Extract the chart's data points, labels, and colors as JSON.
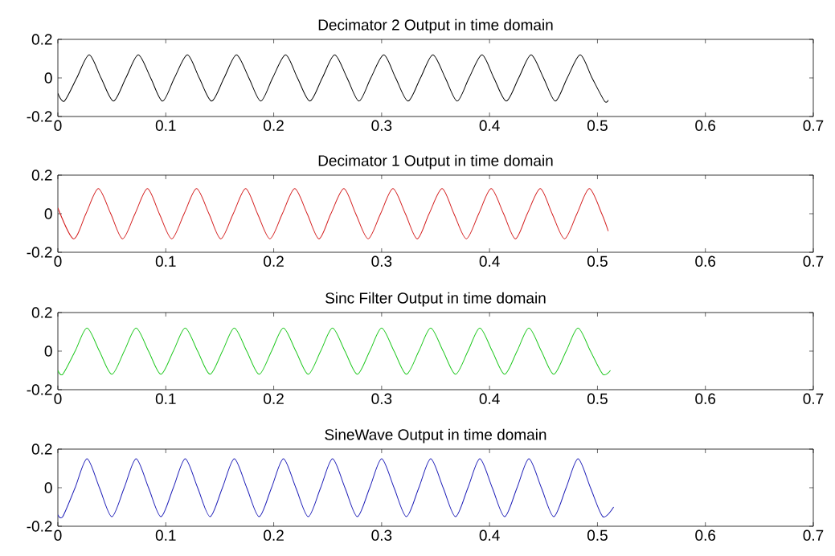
{
  "chart_data": [
    {
      "type": "line",
      "title": "Decimator 2 Output in time domain",
      "color": "#000000",
      "xlim": [
        0,
        0.7
      ],
      "xticks": [
        0,
        0.1,
        0.2,
        0.3,
        0.4,
        0.5,
        0.6,
        0.7
      ],
      "ylim": [
        -0.2,
        0.2
      ],
      "yticks": [
        -0.2,
        0,
        0.2
      ],
      "x": [
        0,
        0.006,
        0.0175,
        0.029,
        0.04,
        0.0515,
        0.063,
        0.0745,
        0.086,
        0.097,
        0.108,
        0.12,
        0.131,
        0.1425,
        0.154,
        0.1655,
        0.177,
        0.188,
        0.199,
        0.211,
        0.222,
        0.2335,
        0.245,
        0.2565,
        0.268,
        0.279,
        0.29,
        0.302,
        0.313,
        0.3245,
        0.336,
        0.3475,
        0.359,
        0.37,
        0.381,
        0.393,
        0.404,
        0.4155,
        0.427,
        0.4385,
        0.45,
        0.461,
        0.472,
        0.484,
        0.495,
        0.5065,
        0.51
      ],
      "values": [
        -0.08,
        -0.12,
        0,
        0.12,
        0,
        -0.12,
        0,
        0.12,
        0,
        -0.12,
        0,
        0.12,
        0,
        -0.12,
        0,
        0.12,
        0,
        -0.12,
        0,
        0.12,
        0,
        -0.12,
        0,
        0.12,
        0,
        -0.12,
        0,
        0.12,
        0,
        -0.12,
        0,
        0.12,
        0,
        -0.12,
        0,
        0.12,
        0,
        -0.12,
        0,
        0.12,
        0,
        -0.12,
        0,
        0.12,
        0,
        -0.12,
        -0.115
      ]
    },
    {
      "type": "line",
      "title": "Decimator 1 Output in time domain",
      "color": "#d42020",
      "xlim": [
        0,
        0.7
      ],
      "xticks": [
        0,
        0.1,
        0.2,
        0.3,
        0.4,
        0.5,
        0.6,
        0.7
      ],
      "ylim": [
        -0.2,
        0.2
      ],
      "yticks": [
        -0.2,
        0,
        0.2
      ],
      "x": [
        0,
        0.0145,
        0.026,
        0.0375,
        0.049,
        0.06,
        0.0715,
        0.083,
        0.094,
        0.1055,
        0.117,
        0.1285,
        0.14,
        0.151,
        0.1625,
        0.174,
        0.185,
        0.1965,
        0.208,
        0.2195,
        0.231,
        0.242,
        0.253,
        0.265,
        0.276,
        0.2875,
        0.299,
        0.3105,
        0.322,
        0.333,
        0.344,
        0.356,
        0.367,
        0.3785,
        0.39,
        0.4015,
        0.413,
        0.424,
        0.435,
        0.447,
        0.458,
        0.4695,
        0.481,
        0.4925,
        0.504,
        0.51
      ],
      "values": [
        0.03,
        -0.13,
        0,
        0.13,
        0,
        -0.13,
        0,
        0.13,
        0,
        -0.13,
        0,
        0.13,
        0,
        -0.13,
        0,
        0.13,
        0,
        -0.13,
        0,
        0.13,
        0,
        -0.13,
        0,
        0.13,
        0,
        -0.13,
        0,
        0.13,
        0,
        -0.13,
        0,
        0.13,
        0,
        -0.13,
        0,
        0.13,
        0,
        -0.13,
        0,
        0.13,
        0,
        -0.13,
        0,
        0.13,
        0,
        -0.09
      ]
    },
    {
      "type": "line",
      "title": "Sinc Filter Output in time domain",
      "color": "#20c820",
      "xlim": [
        0,
        0.7
      ],
      "xticks": [
        0,
        0.1,
        0.2,
        0.3,
        0.4,
        0.5,
        0.6,
        0.7
      ],
      "ylim": [
        -0.2,
        0.2
      ],
      "yticks": [
        -0.2,
        0,
        0.2
      ],
      "x": [
        0,
        0.0045,
        0.016,
        0.027,
        0.0385,
        0.05,
        0.0615,
        0.0725,
        0.084,
        0.0955,
        0.107,
        0.118,
        0.1295,
        0.141,
        0.1525,
        0.1635,
        0.175,
        0.1865,
        0.198,
        0.209,
        0.2205,
        0.232,
        0.2435,
        0.2545,
        0.266,
        0.2775,
        0.289,
        0.3,
        0.3115,
        0.323,
        0.3345,
        0.3455,
        0.357,
        0.3685,
        0.38,
        0.391,
        0.4025,
        0.414,
        0.4255,
        0.4365,
        0.448,
        0.4595,
        0.471,
        0.482,
        0.4935,
        0.505,
        0.512
      ],
      "values": [
        -0.1,
        -0.12,
        0,
        0.12,
        0,
        -0.12,
        0,
        0.12,
        0,
        -0.12,
        0,
        0.12,
        0,
        -0.12,
        0,
        0.12,
        0,
        -0.12,
        0,
        0.12,
        0,
        -0.12,
        0,
        0.12,
        0,
        -0.12,
        0,
        0.12,
        0,
        -0.12,
        0,
        0.12,
        0,
        -0.12,
        0,
        0.12,
        0,
        -0.12,
        0,
        0.12,
        0,
        -0.12,
        0,
        0.12,
        0,
        -0.12,
        -0.1
      ]
    },
    {
      "type": "line",
      "title": "SineWave Output in time domain",
      "color": "#2020b8",
      "xlim": [
        0,
        0.7
      ],
      "xticks": [
        0,
        0.1,
        0.2,
        0.3,
        0.4,
        0.5,
        0.6,
        0.7
      ],
      "ylim": [
        -0.2,
        0.2
      ],
      "yticks": [
        -0.2,
        0,
        0.2
      ],
      "x": [
        0,
        0.0045,
        0.016,
        0.027,
        0.0385,
        0.05,
        0.0615,
        0.0725,
        0.084,
        0.0955,
        0.107,
        0.118,
        0.1295,
        0.141,
        0.1525,
        0.1635,
        0.175,
        0.1865,
        0.198,
        0.209,
        0.2205,
        0.232,
        0.2435,
        0.2545,
        0.266,
        0.2775,
        0.289,
        0.3,
        0.3115,
        0.323,
        0.3345,
        0.3455,
        0.357,
        0.3685,
        0.38,
        0.391,
        0.4025,
        0.414,
        0.4255,
        0.4365,
        0.448,
        0.4595,
        0.471,
        0.482,
        0.4935,
        0.505,
        0.515
      ],
      "values": [
        -0.14,
        -0.15,
        0,
        0.15,
        0,
        -0.15,
        0,
        0.15,
        0,
        -0.15,
        0,
        0.15,
        0,
        -0.15,
        0,
        0.15,
        0,
        -0.15,
        0,
        0.15,
        0,
        -0.15,
        0,
        0.15,
        0,
        -0.15,
        0,
        0.15,
        0,
        -0.15,
        0,
        0.15,
        0,
        -0.15,
        0,
        0.15,
        0,
        -0.15,
        0,
        0.15,
        0,
        -0.15,
        0,
        0.15,
        0,
        -0.15,
        -0.1
      ]
    }
  ]
}
